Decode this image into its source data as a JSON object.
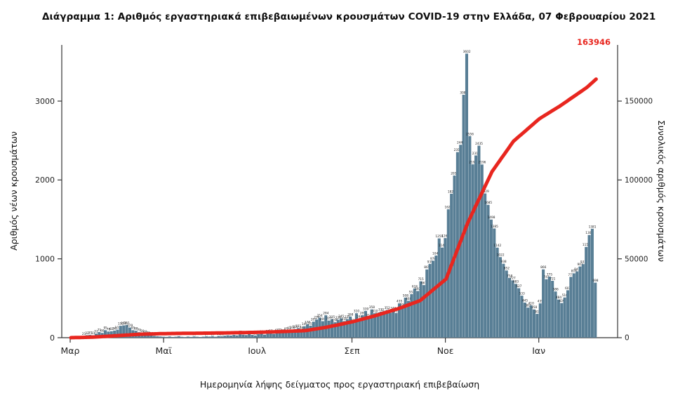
{
  "title": "Διάγραμμα 1: Αριθμός εργαστηριακά επιβεβαιωμένων κρουσμάτων COVID-19 στην Ελλάδα, 07 Φεβρουαρίου 2021",
  "chart_data": {
    "type": "bar+line",
    "xlabel": "Ημερομηνία λήψης δείγματος προς εργαστηριακή επιβεβαίωση",
    "left_axis": {
      "label": "Αριθμός νέων κρουσμάτων",
      "ticks": [
        0,
        1000,
        2000,
        3000
      ],
      "range": [
        0,
        3700
      ]
    },
    "right_axis": {
      "label": "Συνολικός αριθμός κρουσμάτων",
      "ticks": [
        0,
        50000,
        100000,
        150000
      ],
      "range": [
        0,
        170000
      ]
    },
    "x_ticks": [
      {
        "label": "Μαρ",
        "day": 0
      },
      {
        "label": "Μαϊ",
        "day": 61
      },
      {
        "label": "Ιουλ",
        "day": 122
      },
      {
        "label": "Σεπ",
        "day": 184
      },
      {
        "label": "Νοε",
        "day": 245
      },
      {
        "label": "Ιαν",
        "day": 306
      }
    ],
    "series": [
      {
        "name": "Αριθμός νέων κρουσμάτων (ημερήσια, δειγματοληψία ανά 2 ημέρες)",
        "type": "bar",
        "color": "#587e95",
        "start_date": "2020-03-01",
        "sample_interval_days": 2,
        "values": [
          5,
          8,
          10,
          14,
          21,
          32,
          35,
          31,
          52,
          71,
          60,
          95,
          78,
          82,
          90,
          102,
          150,
          156,
          161,
          129,
          95,
          88,
          70,
          56,
          48,
          35,
          28,
          22,
          18,
          15,
          12,
          10,
          15,
          9,
          12,
          18,
          11,
          8,
          14,
          10,
          16,
          12,
          9,
          13,
          17,
          14,
          19,
          12,
          22,
          18,
          25,
          30,
          27,
          35,
          29,
          42,
          38,
          33,
          45,
          35,
          28,
          44,
          50,
          38,
          52,
          57,
          48,
          65,
          72,
          60,
          85,
          93,
          102,
          110,
          121,
          98,
          145,
          170,
          152,
          203,
          230,
          254,
          209,
          284,
          217,
          235,
          196,
          228,
          245,
          210,
          235,
          268,
          192,
          310,
          240,
          285,
          339,
          252,
          358,
          310,
          275,
          330,
          298,
          352,
          315,
          346,
          312,
          435,
          390,
          508,
          468,
          552,
          624,
          592,
          715,
          667,
          865,
          935,
          976,
          1042,
          1259,
          1143,
          1263,
          1628,
          1825,
          2056,
          2353,
          2446,
          3080,
          3602,
          2556,
          2198,
          2311,
          2435,
          2196,
          1829,
          1685,
          1498,
          1385,
          1142,
          1022,
          938,
          852,
          758,
          727,
          683,
          627,
          533,
          445,
          382,
          410,
          358,
          302,
          435,
          866,
          741,
          775,
          721,
          586,
          484,
          439,
          510,
          602,
          771,
          816,
          841,
          903,
          933,
          1151,
          1302,
          1381,
          698
        ]
      },
      {
        "name": "Συνολικός αριθμός κρουσμάτων",
        "type": "line",
        "color": "#e8261f",
        "anchors": [
          {
            "day": 0,
            "date": "2020-03-01",
            "value": 7
          },
          {
            "day": 14,
            "date": "2020-03-15",
            "value": 331
          },
          {
            "day": 31,
            "date": "2020-04-01",
            "value": 1314
          },
          {
            "day": 45,
            "date": "2020-04-15",
            "value": 2192
          },
          {
            "day": 61,
            "date": "2020-05-01",
            "value": 2591
          },
          {
            "day": 75,
            "date": "2020-05-15",
            "value": 2770
          },
          {
            "day": 92,
            "date": "2020-06-01",
            "value": 2917
          },
          {
            "day": 106,
            "date": "2020-06-15",
            "value": 3121
          },
          {
            "day": 122,
            "date": "2020-07-01",
            "value": 3409
          },
          {
            "day": 136,
            "date": "2020-07-15",
            "value": 3826
          },
          {
            "day": 153,
            "date": "2020-08-01",
            "value": 4477
          },
          {
            "day": 167,
            "date": "2020-08-15",
            "value": 6632
          },
          {
            "day": 184,
            "date": "2020-09-01",
            "value": 10134
          },
          {
            "day": 198,
            "date": "2020-09-15",
            "value": 13730
          },
          {
            "day": 214,
            "date": "2020-10-01",
            "value": 18475
          },
          {
            "day": 228,
            "date": "2020-10-15",
            "value": 23495
          },
          {
            "day": 245,
            "date": "2020-11-01",
            "value": 37196
          },
          {
            "day": 259,
            "date": "2020-11-15",
            "value": 72510
          },
          {
            "day": 275,
            "date": "2020-12-01",
            "value": 105271
          },
          {
            "day": 289,
            "date": "2020-12-15",
            "value": 124534
          },
          {
            "day": 306,
            "date": "2021-01-01",
            "value": 138850
          },
          {
            "day": 320,
            "date": "2021-01-15",
            "value": 147283
          },
          {
            "day": 337,
            "date": "2021-02-01",
            "value": 158716
          },
          {
            "day": 343,
            "date": "2021-02-07",
            "value": 163946
          }
        ]
      }
    ],
    "annotations": [
      {
        "text": "163946",
        "color": "#e8261f",
        "position": "line-end"
      }
    ]
  }
}
